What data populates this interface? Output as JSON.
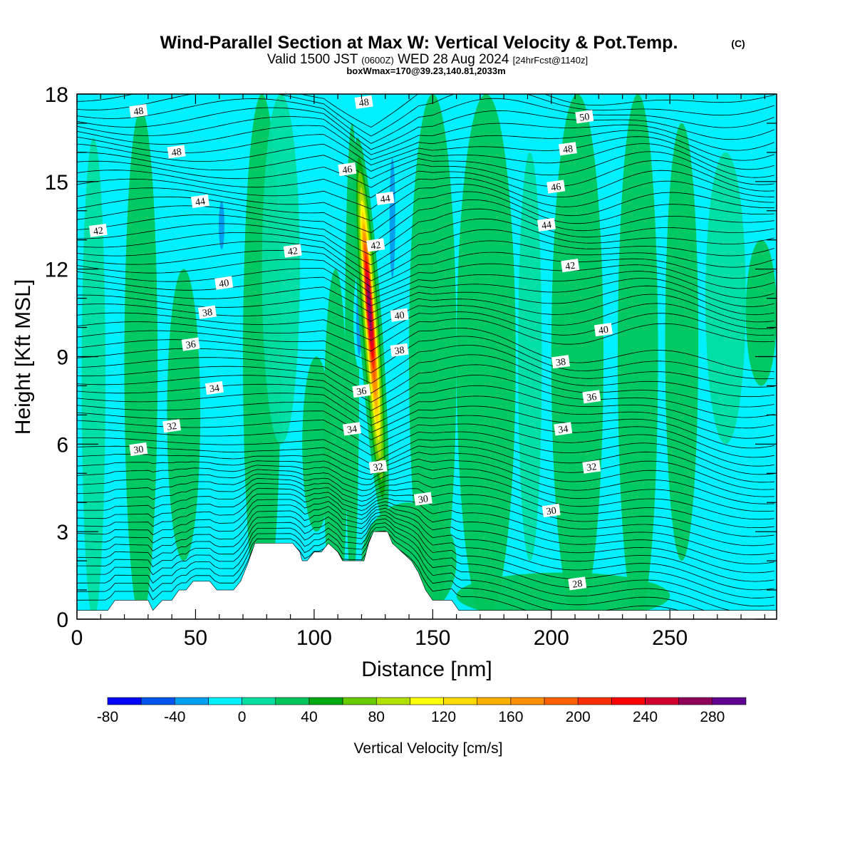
{
  "chart_data": {
    "type": "heatmap",
    "title": "Wind-Parallel Section at Max W: Vertical Velocity & Pot.Temp.",
    "title_mark": "(C)",
    "subtitle": {
      "valid": "Valid 1500 JST",
      "utc": "(0600Z)",
      "date": "WED 28 Aug 2024",
      "fcst": "[24hrFcst@1140z]"
    },
    "subtitle2": "boxWmax=170@39.23,140.81,2033m",
    "xlabel": "Distance [nm]",
    "ylabel": "Height [Kft MSL]",
    "xlim": [
      0,
      295
    ],
    "ylim": [
      0,
      18
    ],
    "xticks": [
      "0",
      "50",
      "100",
      "150",
      "200",
      "250"
    ],
    "xtick_values": [
      0,
      50,
      100,
      150,
      200,
      250
    ],
    "yticks": [
      "0",
      "3",
      "6",
      "9",
      "12",
      "15",
      "18"
    ],
    "ytick_values": [
      0,
      3,
      6,
      9,
      12,
      15,
      18
    ],
    "colorbar": {
      "label": "Vertical Velocity [cm/s]",
      "tick_labels": [
        "-80",
        "-40",
        "0",
        "40",
        "80",
        "120",
        "160",
        "200",
        "240",
        "280"
      ],
      "tick_values": [
        -80,
        -40,
        0,
        40,
        80,
        120,
        160,
        200,
        240,
        280
      ],
      "range": [
        -80,
        300
      ],
      "step": 20,
      "colors": [
        "#0000ff",
        "#0055ee",
        "#00a0f0",
        "#00f0ff",
        "#00dda0",
        "#00c55a",
        "#00aa10",
        "#66cc00",
        "#b0e000",
        "#ffff00",
        "#ffd900",
        "#ffb000",
        "#ff9000",
        "#ff6000",
        "#ff3000",
        "#ff0000",
        "#d00030",
        "#90005a",
        "#600090"
      ]
    },
    "updraft": {
      "x": 124,
      "peak_w": 270,
      "base_kft": 4.2,
      "top_kft": 17.5
    },
    "downdrafts": [
      {
        "x": 61,
        "y_bottom": 12.4,
        "y_top": 14.6,
        "w": -40
      },
      {
        "x": 133,
        "y_bottom": 11,
        "y_top": 16.5,
        "w": -40
      },
      {
        "x": 119,
        "y_bottom": 8.6,
        "y_top": 12,
        "w": -40
      }
    ],
    "terrain": [
      [
        0,
        0.3
      ],
      [
        13,
        0.3
      ],
      [
        16,
        0.65
      ],
      [
        30,
        0.65
      ],
      [
        32,
        0.3
      ],
      [
        36,
        0.65
      ],
      [
        40,
        0.65
      ],
      [
        43,
        1
      ],
      [
        46,
        1
      ],
      [
        49,
        1.3
      ],
      [
        56,
        1.3
      ],
      [
        59,
        1
      ],
      [
        66,
        1
      ],
      [
        69,
        1.3
      ],
      [
        72,
        1.9
      ],
      [
        75,
        2.6
      ],
      [
        91,
        2.6
      ],
      [
        94,
        2.3
      ],
      [
        95,
        2
      ],
      [
        97,
        2
      ],
      [
        100,
        2.3
      ],
      [
        103,
        2.3
      ],
      [
        106,
        2.6
      ],
      [
        110,
        2.3
      ],
      [
        112,
        2
      ],
      [
        121,
        2
      ],
      [
        123,
        2.6
      ],
      [
        125,
        3
      ],
      [
        131,
        3
      ],
      [
        133,
        2.6
      ],
      [
        137,
        2.3
      ],
      [
        141,
        2
      ],
      [
        144,
        1.6
      ],
      [
        147,
        1
      ],
      [
        150,
        0.65
      ],
      [
        158,
        0.65
      ],
      [
        161,
        0.3
      ],
      [
        295,
        0.3
      ]
    ],
    "theta_contours": {
      "unit": "K",
      "interval": 1,
      "labels": [
        {
          "text": "48",
          "x": 26,
          "y": 17.4
        },
        {
          "text": "48",
          "x": 42,
          "y": 16.0
        },
        {
          "text": "44",
          "x": 52,
          "y": 14.3
        },
        {
          "text": "42",
          "x": 9,
          "y": 13.3
        },
        {
          "text": "42",
          "x": 91,
          "y": 12.6
        },
        {
          "text": "40",
          "x": 62,
          "y": 11.5
        },
        {
          "text": "38",
          "x": 55,
          "y": 10.5
        },
        {
          "text": "36",
          "x": 48,
          "y": 9.4
        },
        {
          "text": "34",
          "x": 58,
          "y": 7.9
        },
        {
          "text": "32",
          "x": 40,
          "y": 6.6
        },
        {
          "text": "30",
          "x": 26,
          "y": 5.8
        },
        {
          "text": "48",
          "x": 121,
          "y": 17.7
        },
        {
          "text": "46",
          "x": 114,
          "y": 15.4
        },
        {
          "text": "44",
          "x": 130,
          "y": 14.4
        },
        {
          "text": "42",
          "x": 126,
          "y": 12.8
        },
        {
          "text": "40",
          "x": 136,
          "y": 10.4
        },
        {
          "text": "38",
          "x": 136,
          "y": 9.2
        },
        {
          "text": "36",
          "x": 120,
          "y": 7.8
        },
        {
          "text": "34",
          "x": 116,
          "y": 6.5
        },
        {
          "text": "32",
          "x": 127,
          "y": 5.2
        },
        {
          "text": "30",
          "x": 146,
          "y": 4.1
        },
        {
          "text": "50",
          "x": 214,
          "y": 17.2
        },
        {
          "text": "48",
          "x": 207,
          "y": 16.1
        },
        {
          "text": "46",
          "x": 202,
          "y": 14.8
        },
        {
          "text": "44",
          "x": 198,
          "y": 13.5
        },
        {
          "text": "42",
          "x": 208,
          "y": 12.1
        },
        {
          "text": "40",
          "x": 222,
          "y": 9.9
        },
        {
          "text": "38",
          "x": 204,
          "y": 8.8
        },
        {
          "text": "36",
          "x": 217,
          "y": 7.6
        },
        {
          "text": "34",
          "x": 205,
          "y": 6.5
        },
        {
          "text": "32",
          "x": 217,
          "y": 5.2
        },
        {
          "text": "30",
          "x": 200,
          "y": 3.7
        },
        {
          "text": "28",
          "x": 211,
          "y": 1.2
        }
      ]
    },
    "grid": false,
    "legend": "colorbar-bottom"
  }
}
